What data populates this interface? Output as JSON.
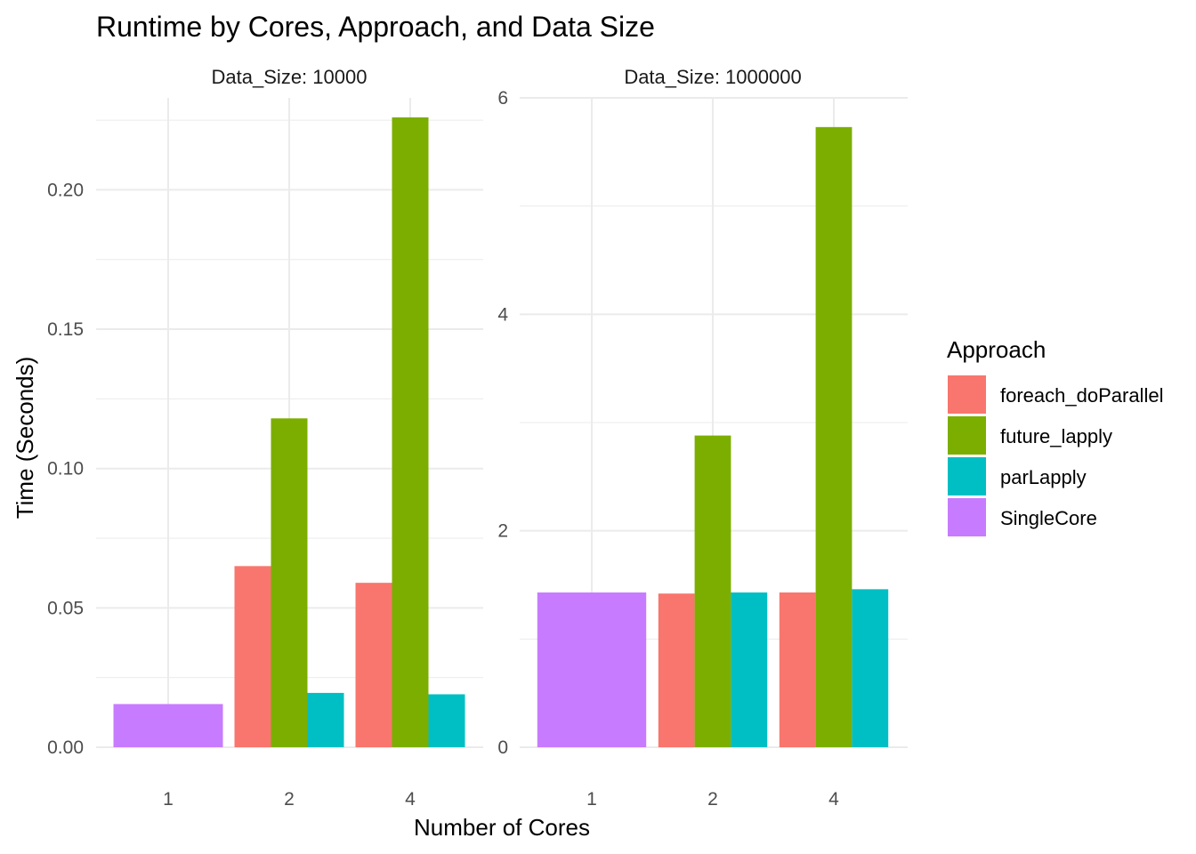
{
  "chart_data": {
    "type": "bar",
    "title": "Runtime by Cores, Approach, and Data Size",
    "xlabel": "Number of Cores",
    "ylabel": "Time (Seconds)",
    "categories": [
      "1",
      "2",
      "4"
    ],
    "legend": {
      "title": "Approach",
      "position": "right",
      "items": [
        {
          "name": "foreach_doParallel",
          "color": "#F8766D"
        },
        {
          "name": "future_lapply",
          "color": "#7CAE00"
        },
        {
          "name": "parLapply",
          "color": "#00BFC4"
        },
        {
          "name": "SingleCore",
          "color": "#C77CFF"
        }
      ]
    },
    "grid": true,
    "facets": [
      {
        "label": "Data_Size: 10000",
        "ylim": [
          0,
          0.233
        ],
        "yticks": [
          0.0,
          0.05,
          0.1,
          0.15,
          0.2
        ],
        "ytick_labels": [
          "0.00",
          "0.05",
          "0.10",
          "0.15",
          "0.20"
        ],
        "series": [
          {
            "name": "foreach_doParallel",
            "values": [
              null,
              0.065,
              0.059
            ]
          },
          {
            "name": "future_lapply",
            "values": [
              null,
              0.118,
              0.226
            ]
          },
          {
            "name": "parLapply",
            "values": [
              null,
              0.0195,
              0.019
            ]
          },
          {
            "name": "SingleCore",
            "values": [
              0.0155,
              null,
              null
            ]
          }
        ]
      },
      {
        "label": "Data_Size: 1000000",
        "ylim": [
          0,
          6.0
        ],
        "yticks": [
          0,
          2,
          4,
          6
        ],
        "ytick_labels": [
          "0",
          "2",
          "4",
          "6"
        ],
        "series": [
          {
            "name": "foreach_doParallel",
            "values": [
              null,
              1.42,
              1.43
            ]
          },
          {
            "name": "future_lapply",
            "values": [
              null,
              2.88,
              5.73
            ]
          },
          {
            "name": "parLapply",
            "values": [
              null,
              1.43,
              1.46
            ]
          },
          {
            "name": "SingleCore",
            "values": [
              1.43,
              null,
              null
            ]
          }
        ]
      }
    ]
  }
}
